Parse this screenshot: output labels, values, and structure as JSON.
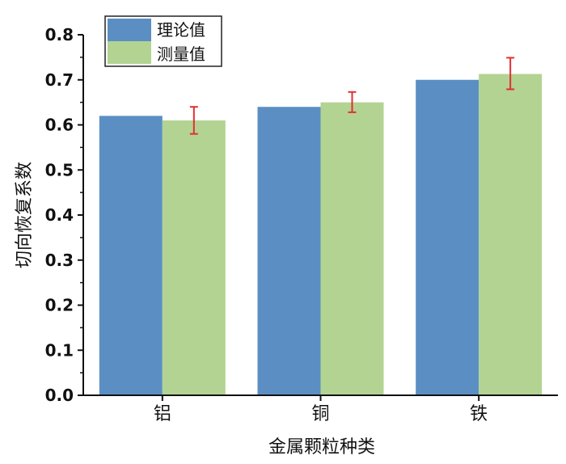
{
  "chart_data": {
    "type": "bar",
    "categories": [
      "铝",
      "铜",
      "铁"
    ],
    "series": [
      {
        "name": "理论值",
        "values": [
          0.62,
          0.64,
          0.7
        ],
        "color": "#5b8fc3"
      },
      {
        "name": "测量值",
        "values": [
          0.61,
          0.65,
          0.713
        ],
        "color": "#b3d393",
        "error": [
          [
            0.58,
            0.64
          ],
          [
            0.628,
            0.673
          ],
          [
            0.679,
            0.749
          ]
        ]
      }
    ],
    "error_color": "#e03030",
    "xlabel": "金属颗粒种类",
    "ylabel": "切向恢复系数",
    "ylim": [
      0,
      0.8
    ],
    "yticks": [
      "0.0",
      "0.1",
      "0.2",
      "0.3",
      "0.4",
      "0.5",
      "0.6",
      "0.7",
      "0.8"
    ],
    "legend_position": "top-left",
    "grid": false
  }
}
